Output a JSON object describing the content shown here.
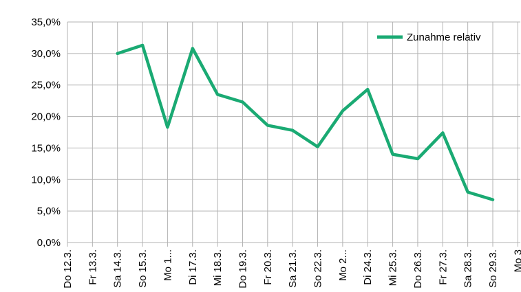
{
  "chart_data": {
    "type": "line",
    "title": "",
    "xlabel": "",
    "ylabel": "",
    "categories": [
      "Do 12.3.",
      "Fr 13.3.",
      "Sa 14.3.",
      "So 15.3.",
      "Mo 1...",
      "Di 17.3.",
      "Mi 18.3.",
      "Do 19.3.",
      "Fr 20.3.",
      "Sa 21.3.",
      "So 22.3.",
      "Mo 2...",
      "Di 24.3.",
      "Mi 25.3.",
      "Do 26.3.",
      "Fr 27.3.",
      "Sa 28.3.",
      "So 29.3.",
      "Mo 3"
    ],
    "series": [
      {
        "name": "Zunahme relativ",
        "color": "#1aaa73",
        "values": [
          null,
          null,
          30.0,
          31.3,
          18.3,
          30.8,
          23.5,
          22.3,
          18.6,
          17.8,
          15.2,
          20.9,
          24.3,
          14.0,
          13.3,
          17.4,
          8.0,
          6.8,
          null
        ]
      }
    ],
    "ylim": [
      0,
      35
    ],
    "yticks": [
      0,
      5,
      10,
      15,
      20,
      25,
      30,
      35
    ],
    "ytick_labels": [
      "0,0%",
      "5,0%",
      "10,0%",
      "15,0%",
      "20,0%",
      "25,0%",
      "30,0%",
      "35,0%"
    ],
    "grid": true,
    "legend": "top-right"
  }
}
